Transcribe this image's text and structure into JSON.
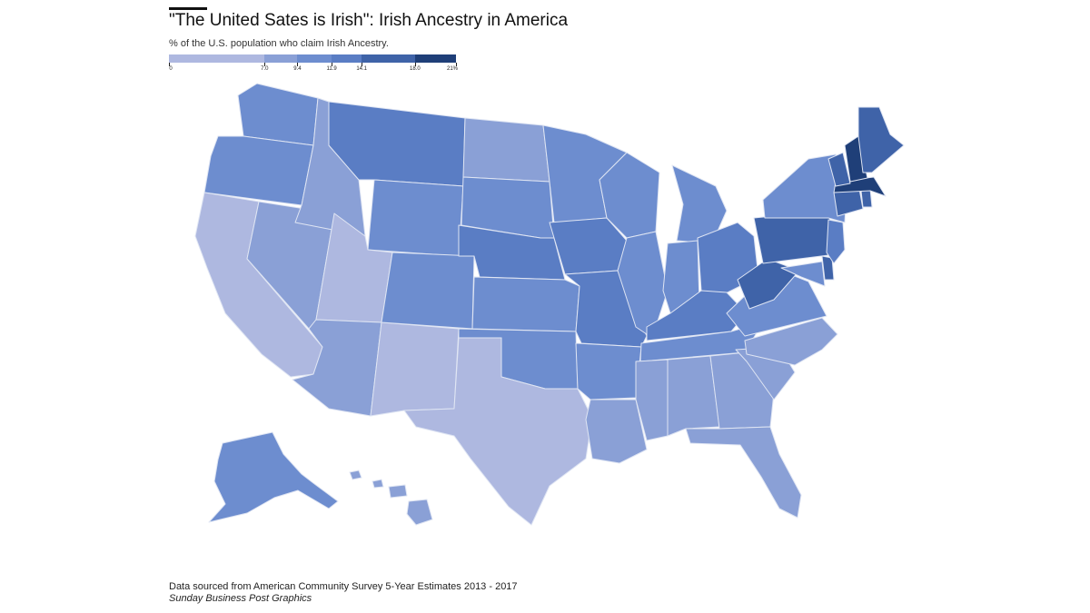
{
  "title": "\"The United Sates is Irish\": Irish Ancestry in America",
  "subtitle": "% of the U.S. population who claim Irish Ancestry.",
  "legend": {
    "min": 0,
    "max": 21,
    "breaks": [
      0,
      7.0,
      9.4,
      11.9,
      14.1,
      18.0,
      21
    ],
    "labels": [
      "0",
      "7.0",
      "9.4",
      "11.9",
      "14.1",
      "18.0",
      "21%"
    ],
    "colors": [
      "#aeb8e0",
      "#8aa0d6",
      "#6d8dcf",
      "#5a7dc4",
      "#3f63a8",
      "#1f3f78"
    ]
  },
  "map_data": {
    "type": "choropleth",
    "classes": {
      "WA": 2,
      "OR": 2,
      "CA": 0,
      "NV": 1,
      "ID": 1,
      "MT": 3,
      "WY": 2,
      "UT": 0,
      "AZ": 1,
      "NM": 0,
      "CO": 2,
      "ND": 1,
      "SD": 2,
      "NE": 3,
      "KS": 2,
      "OK": 2,
      "TX": 0,
      "MN": 2,
      "IA": 3,
      "MO": 3,
      "AR": 2,
      "LA": 1,
      "WI": 2,
      "IL": 2,
      "MI": 2,
      "IN": 2,
      "OH": 3,
      "KY": 3,
      "TN": 2,
      "MS": 1,
      "AL": 1,
      "GA": 1,
      "FL": 1,
      "SC": 1,
      "NC": 1,
      "VA": 2,
      "WV": 4,
      "MD": 2,
      "DE": 4,
      "PA": 4,
      "NJ": 3,
      "NY": 2,
      "CT": 4,
      "RI": 4,
      "MA": 5,
      "VT": 4,
      "NH": 5,
      "ME": 4,
      "AK": 2,
      "HI": 1
    }
  },
  "source": "Data sourced from American Community Survey 5-Year Estimates 2013 - 2017",
  "credit": "Sunday Business Post Graphics"
}
